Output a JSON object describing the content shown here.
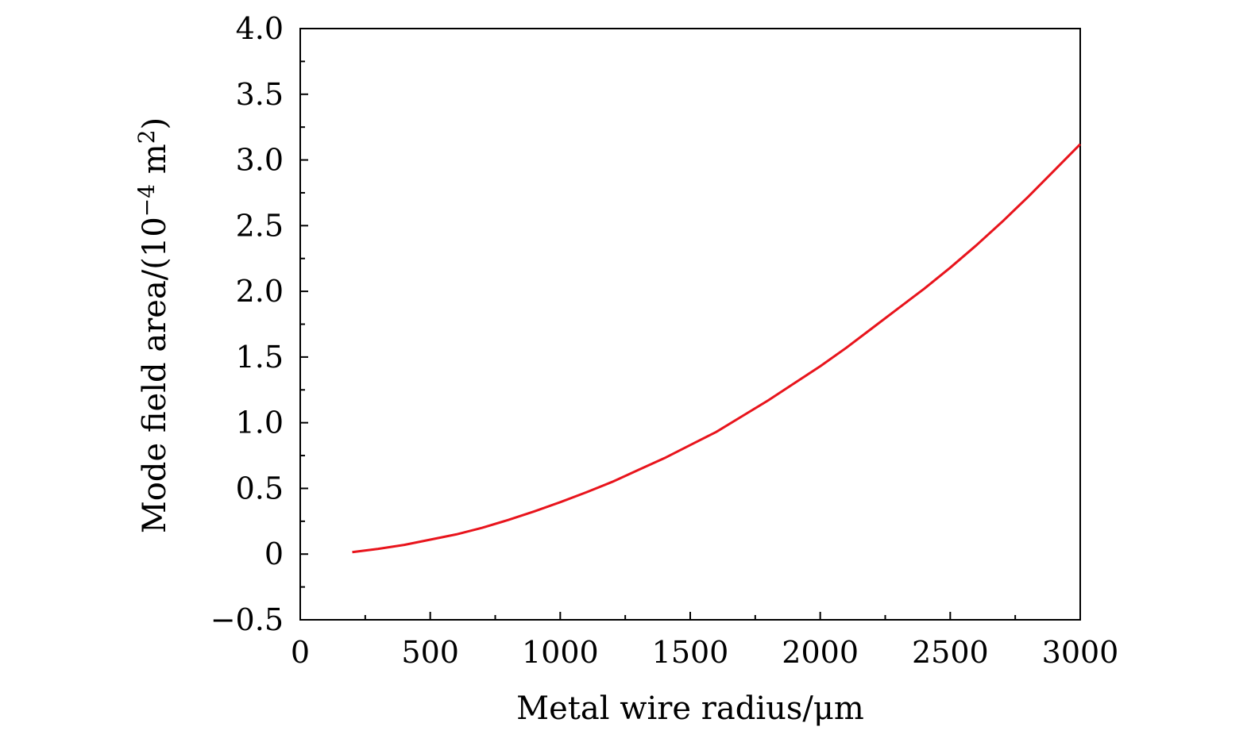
{
  "chart_data": {
    "type": "line",
    "title": "",
    "xlabel": "Metal wire radius/μm",
    "ylabel_main": "Mode field area/(10",
    "ylabel_exp": "−4",
    "ylabel_unit": " m",
    "ylabel_unit_exp": "2",
    "ylabel_close": ")",
    "xlim": [
      0,
      3000
    ],
    "ylim": [
      -0.5,
      4.0
    ],
    "xticks": [
      0,
      500,
      1000,
      1500,
      2000,
      2500,
      3000
    ],
    "xtick_labels": [
      "0",
      "500",
      "1000",
      "1500",
      "2000",
      "2500",
      "3000"
    ],
    "yticks": [
      -0.5,
      0,
      0.5,
      1.0,
      1.5,
      2.0,
      2.5,
      3.0,
      3.5,
      4.0
    ],
    "ytick_labels": [
      "−0.5",
      "0",
      "0.5",
      "1.0",
      "1.5",
      "2.0",
      "2.5",
      "3.0",
      "3.5",
      "4.0"
    ],
    "grid": false,
    "series": [
      {
        "name": "Mode field area",
        "color": "#e8141c",
        "x": [
          200,
          300,
          400,
          500,
          600,
          700,
          800,
          900,
          1000,
          1100,
          1200,
          1300,
          1400,
          1500,
          1600,
          1700,
          1800,
          1900,
          2000,
          2100,
          2200,
          2300,
          2400,
          2500,
          2600,
          2700,
          2800,
          2900,
          3000
        ],
        "y": [
          0.015,
          0.04,
          0.07,
          0.11,
          0.15,
          0.2,
          0.26,
          0.325,
          0.395,
          0.47,
          0.55,
          0.64,
          0.73,
          0.83,
          0.93,
          1.05,
          1.17,
          1.3,
          1.43,
          1.57,
          1.72,
          1.87,
          2.02,
          2.18,
          2.35,
          2.53,
          2.72,
          2.92,
          3.12
        ]
      }
    ]
  }
}
